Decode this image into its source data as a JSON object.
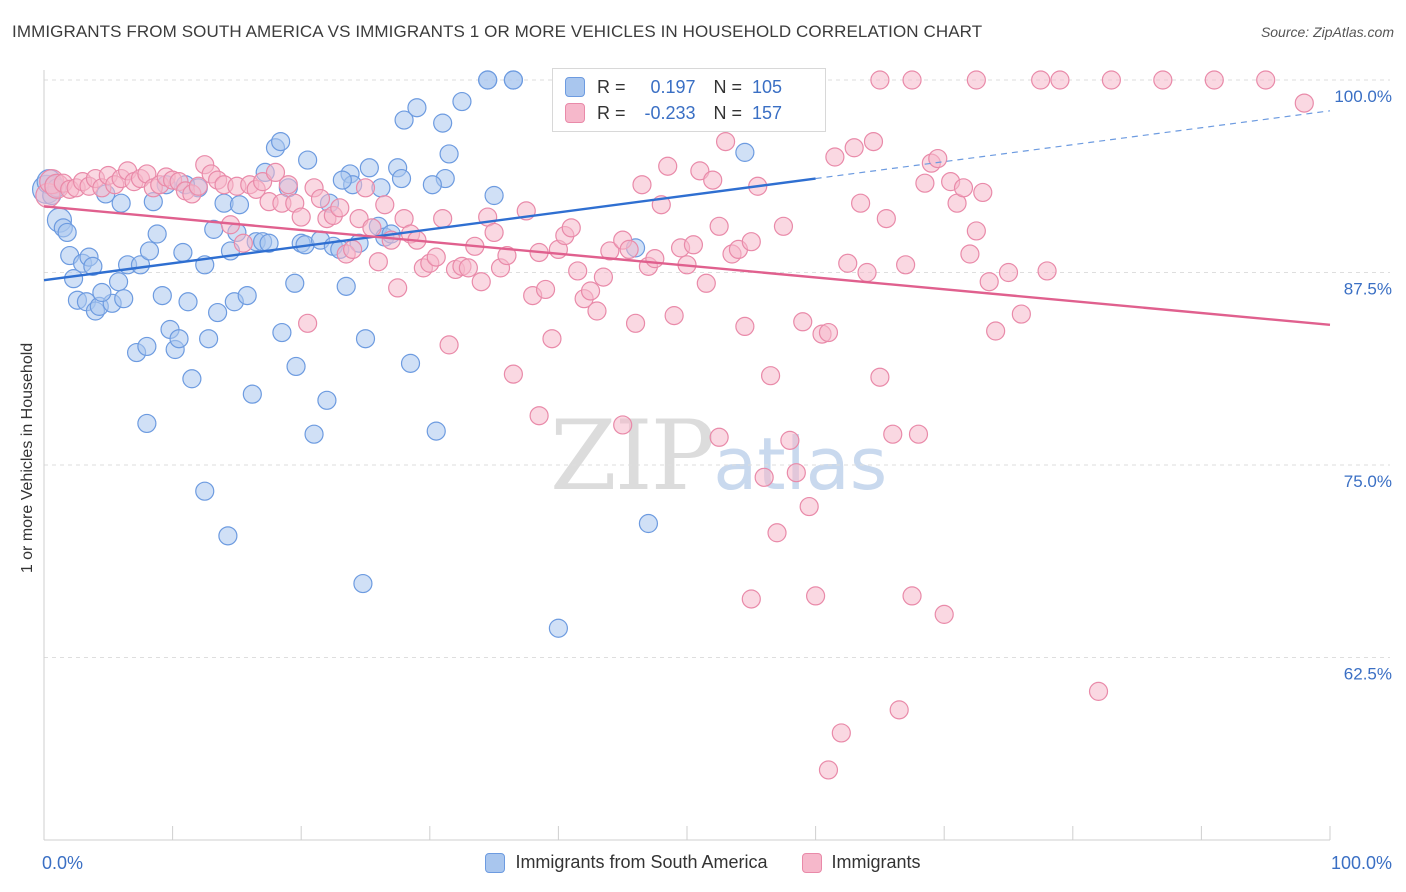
{
  "header": {
    "title": "IMMIGRANTS FROM SOUTH AMERICA VS IMMIGRANTS 1 OR MORE VEHICLES IN HOUSEHOLD CORRELATION CHART",
    "source": "Source: ZipAtlas.com"
  },
  "watermark": {
    "zip": "ZIP",
    "atlas": "atlas"
  },
  "legend_top": {
    "r_label": "R =",
    "n_label": "N =",
    "rows": [
      {
        "r": "0.197",
        "n": "105",
        "fill": "#a9c6ee",
        "stroke": "#6d9be0"
      },
      {
        "r": "-0.233",
        "n": "157",
        "fill": "#f6b8cb",
        "stroke": "#e98aa9"
      }
    ]
  },
  "chart_data": {
    "type": "scatter",
    "xlabel": "",
    "ylabel": "1 or more Vehicles in Household",
    "xlim": [
      0,
      100
    ],
    "ylim": [
      52,
      101.5
    ],
    "x_ticks": [
      "0.0%",
      "100.0%"
    ],
    "y_ticks": [
      {
        "value": 100.0,
        "label": "100.0%"
      },
      {
        "value": 87.5,
        "label": "87.5%"
      },
      {
        "value": 75.0,
        "label": "75.0%"
      },
      {
        "value": 62.5,
        "label": "62.5%"
      }
    ],
    "grid": "horizontal dashed",
    "series": [
      {
        "name": "Immigrants from South America",
        "color": "#6d9be0",
        "fill": "#a9c6ee",
        "trend": {
          "x0": 0,
          "y0": 87.0,
          "x1": 60,
          "y1": 93.6,
          "dash_to_x": 100,
          "dash_to_y": 98.0
        },
        "points": [
          [
            0.2,
            92.9
          ],
          [
            0.4,
            93.4
          ],
          [
            0.8,
            93.2
          ],
          [
            1.2,
            90.9
          ],
          [
            1.5,
            90.4
          ],
          [
            1.8,
            90.1
          ],
          [
            2.0,
            88.6
          ],
          [
            2.3,
            87.1
          ],
          [
            2.6,
            85.7
          ],
          [
            3.0,
            88.1
          ],
          [
            3.3,
            85.6
          ],
          [
            3.5,
            88.5
          ],
          [
            3.8,
            87.9
          ],
          [
            4.0,
            85.0
          ],
          [
            4.3,
            85.3
          ],
          [
            4.8,
            92.6
          ],
          [
            5.3,
            85.5
          ],
          [
            5.8,
            86.9
          ],
          [
            6.2,
            85.8
          ],
          [
            6.5,
            88.0
          ],
          [
            7.2,
            82.3
          ],
          [
            7.5,
            88.0
          ],
          [
            8.0,
            82.7
          ],
          [
            8.2,
            88.9
          ],
          [
            8.8,
            90.0
          ],
          [
            8.5,
            92.1
          ],
          [
            9.2,
            86.0
          ],
          [
            9.8,
            83.8
          ],
          [
            10.2,
            82.5
          ],
          [
            10.5,
            83.2
          ],
          [
            10.8,
            88.8
          ],
          [
            11.2,
            85.6
          ],
          [
            11.5,
            80.6
          ],
          [
            12.0,
            93.0
          ],
          [
            12.5,
            88.0
          ],
          [
            12.8,
            83.2
          ],
          [
            13.2,
            90.3
          ],
          [
            13.5,
            84.9
          ],
          [
            14.0,
            92.0
          ],
          [
            14.5,
            88.9
          ],
          [
            14.8,
            85.6
          ],
          [
            15.2,
            91.9
          ],
          [
            15.8,
            86.0
          ],
          [
            16.2,
            79.6
          ],
          [
            16.5,
            89.5
          ],
          [
            17.0,
            89.5
          ],
          [
            17.5,
            89.4
          ],
          [
            18.0,
            95.6
          ],
          [
            18.4,
            96.0
          ],
          [
            18.5,
            83.6
          ],
          [
            19.0,
            93.0
          ],
          [
            19.5,
            86.8
          ],
          [
            19.6,
            81.4
          ],
          [
            20.0,
            89.4
          ],
          [
            20.3,
            89.3
          ],
          [
            20.5,
            94.8
          ],
          [
            21.0,
            77.0
          ],
          [
            21.5,
            89.6
          ],
          [
            22.0,
            79.2
          ],
          [
            22.5,
            89.2
          ],
          [
            23.0,
            89.0
          ],
          [
            23.5,
            86.6
          ],
          [
            23.8,
            93.9
          ],
          [
            24.0,
            93.2
          ],
          [
            24.5,
            89.4
          ],
          [
            24.8,
            67.3
          ],
          [
            25.0,
            83.2
          ],
          [
            25.3,
            94.3
          ],
          [
            26.0,
            90.5
          ],
          [
            26.5,
            89.8
          ],
          [
            27.0,
            90.0
          ],
          [
            27.5,
            94.3
          ],
          [
            27.8,
            93.6
          ],
          [
            28.0,
            97.4
          ],
          [
            28.5,
            81.6
          ],
          [
            29.0,
            98.2
          ],
          [
            30.5,
            77.2
          ],
          [
            31.0,
            97.2
          ],
          [
            31.5,
            95.2
          ],
          [
            31.2,
            93.6
          ],
          [
            32.5,
            98.6
          ],
          [
            34.5,
            100.0
          ],
          [
            36.5,
            100.0
          ],
          [
            12.5,
            73.3
          ],
          [
            14.3,
            70.4
          ],
          [
            8.0,
            77.7
          ],
          [
            40.0,
            64.4
          ],
          [
            46.0,
            89.1
          ],
          [
            47.0,
            71.2
          ],
          [
            54.5,
            95.3
          ],
          [
            59.2,
            100.0
          ],
          [
            0.6,
            92.5
          ],
          [
            1.0,
            93.0
          ],
          [
            4.5,
            86.2
          ],
          [
            6.0,
            92.0
          ],
          [
            9.5,
            93.2
          ],
          [
            11.0,
            93.2
          ],
          [
            15.0,
            90.1
          ],
          [
            17.2,
            94.0
          ],
          [
            22.2,
            92.0
          ],
          [
            23.2,
            93.5
          ],
          [
            26.2,
            93.0
          ],
          [
            30.2,
            93.2
          ],
          [
            35.0,
            92.5
          ],
          [
            41.0,
            100.0
          ]
        ]
      },
      {
        "name": "Immigrants",
        "color": "#e98aa9",
        "fill": "#f6b8cb",
        "trend": {
          "x0": 0,
          "y0": 91.8,
          "x1": 100,
          "y1": 84.1
        },
        "points": [
          [
            0.3,
            92.5
          ],
          [
            0.6,
            93.4
          ],
          [
            1.0,
            93.1
          ],
          [
            1.5,
            93.3
          ],
          [
            2.0,
            92.9
          ],
          [
            2.5,
            93.0
          ],
          [
            3.0,
            93.4
          ],
          [
            3.5,
            93.1
          ],
          [
            4.0,
            93.6
          ],
          [
            4.5,
            93.0
          ],
          [
            5.0,
            93.8
          ],
          [
            5.5,
            93.2
          ],
          [
            6.0,
            93.6
          ],
          [
            6.5,
            94.1
          ],
          [
            7.0,
            93.4
          ],
          [
            7.5,
            93.6
          ],
          [
            8.0,
            93.9
          ],
          [
            8.5,
            93.0
          ],
          [
            9.0,
            93.2
          ],
          [
            9.5,
            93.7
          ],
          [
            10.0,
            93.5
          ],
          [
            10.5,
            93.4
          ],
          [
            11.0,
            92.8
          ],
          [
            11.5,
            92.6
          ],
          [
            12.0,
            93.1
          ],
          [
            12.5,
            94.5
          ],
          [
            13.0,
            93.9
          ],
          [
            13.5,
            93.5
          ],
          [
            14.0,
            93.2
          ],
          [
            14.5,
            90.6
          ],
          [
            15.0,
            93.1
          ],
          [
            15.5,
            89.4
          ],
          [
            16.0,
            93.2
          ],
          [
            16.5,
            92.9
          ],
          [
            17.0,
            93.4
          ],
          [
            17.5,
            92.1
          ],
          [
            18.0,
            94.0
          ],
          [
            18.5,
            92.0
          ],
          [
            19.0,
            93.2
          ],
          [
            19.5,
            92.0
          ],
          [
            20.0,
            91.1
          ],
          [
            20.5,
            84.2
          ],
          [
            21.0,
            93.0
          ],
          [
            21.5,
            92.3
          ],
          [
            22.0,
            91.0
          ],
          [
            22.5,
            91.2
          ],
          [
            23.0,
            91.7
          ],
          [
            23.5,
            88.7
          ],
          [
            24.0,
            89.0
          ],
          [
            24.5,
            91.0
          ],
          [
            25.0,
            93.0
          ],
          [
            25.5,
            90.4
          ],
          [
            26.0,
            88.2
          ],
          [
            26.5,
            91.9
          ],
          [
            27.0,
            89.6
          ],
          [
            27.5,
            86.5
          ],
          [
            28.0,
            91.0
          ],
          [
            28.5,
            90.0
          ],
          [
            29.0,
            89.6
          ],
          [
            29.5,
            87.8
          ],
          [
            30.0,
            88.1
          ],
          [
            30.5,
            88.5
          ],
          [
            31.0,
            91.0
          ],
          [
            31.5,
            82.8
          ],
          [
            32.0,
            87.7
          ],
          [
            32.5,
            87.9
          ],
          [
            33.0,
            87.8
          ],
          [
            33.5,
            89.2
          ],
          [
            34.0,
            86.9
          ],
          [
            34.5,
            91.1
          ],
          [
            35.0,
            90.1
          ],
          [
            35.5,
            87.8
          ],
          [
            36.0,
            88.6
          ],
          [
            36.5,
            80.9
          ],
          [
            37.5,
            91.5
          ],
          [
            38.0,
            86.0
          ],
          [
            38.5,
            88.8
          ],
          [
            39.0,
            86.4
          ],
          [
            39.5,
            83.2
          ],
          [
            40.0,
            89.0
          ],
          [
            40.5,
            89.9
          ],
          [
            41.0,
            90.4
          ],
          [
            41.5,
            87.6
          ],
          [
            42.0,
            85.8
          ],
          [
            42.5,
            86.3
          ],
          [
            43.0,
            85.0
          ],
          [
            43.5,
            87.2
          ],
          [
            44.0,
            88.9
          ],
          [
            45.0,
            89.6
          ],
          [
            45.5,
            89.0
          ],
          [
            46.0,
            84.2
          ],
          [
            46.5,
            93.2
          ],
          [
            47.0,
            87.9
          ],
          [
            47.5,
            88.4
          ],
          [
            48.0,
            91.9
          ],
          [
            48.5,
            94.4
          ],
          [
            49.0,
            84.7
          ],
          [
            49.5,
            89.1
          ],
          [
            50.0,
            88.0
          ],
          [
            50.5,
            89.3
          ],
          [
            51.0,
            94.1
          ],
          [
            51.5,
            86.8
          ],
          [
            52.0,
            93.5
          ],
          [
            52.5,
            90.5
          ],
          [
            53.0,
            96.0
          ],
          [
            53.5,
            88.7
          ],
          [
            54.0,
            89.0
          ],
          [
            54.5,
            84.0
          ],
          [
            55.0,
            89.5
          ],
          [
            55.5,
            93.1
          ],
          [
            56.0,
            74.2
          ],
          [
            56.5,
            80.8
          ],
          [
            57.0,
            70.6
          ],
          [
            57.5,
            90.5
          ],
          [
            58.0,
            76.6
          ],
          [
            58.5,
            74.5
          ],
          [
            59.0,
            84.3
          ],
          [
            59.5,
            72.3
          ],
          [
            60.0,
            66.5
          ],
          [
            60.5,
            83.5
          ],
          [
            61.0,
            55.2
          ],
          [
            61.5,
            95.0
          ],
          [
            62.0,
            57.6
          ],
          [
            62.5,
            88.1
          ],
          [
            63.0,
            95.6
          ],
          [
            63.5,
            92.0
          ],
          [
            64.0,
            87.5
          ],
          [
            64.5,
            96.0
          ],
          [
            65.0,
            80.7
          ],
          [
            65.5,
            91.0
          ],
          [
            66.0,
            77.0
          ],
          [
            66.5,
            59.1
          ],
          [
            67.0,
            88.0
          ],
          [
            67.5,
            66.5
          ],
          [
            68.0,
            77.0
          ],
          [
            68.5,
            93.3
          ],
          [
            69.0,
            94.6
          ],
          [
            69.5,
            94.9
          ],
          [
            70.0,
            65.3
          ],
          [
            70.5,
            93.4
          ],
          [
            71.0,
            92.0
          ],
          [
            71.5,
            93.0
          ],
          [
            72.0,
            88.7
          ],
          [
            72.5,
            90.2
          ],
          [
            73.0,
            92.7
          ],
          [
            73.5,
            86.9
          ],
          [
            74.0,
            83.7
          ],
          [
            75.0,
            87.5
          ],
          [
            76.0,
            84.8
          ],
          [
            78.0,
            87.6
          ],
          [
            82.0,
            60.3
          ],
          [
            98.0,
            98.5
          ],
          [
            55.0,
            66.3
          ],
          [
            45.0,
            77.6
          ],
          [
            38.5,
            78.2
          ],
          [
            52.5,
            76.8
          ],
          [
            61.0,
            83.6
          ]
        ]
      }
    ],
    "top_edge_points": {
      "blue": [
        34.5,
        36.5,
        42.0,
        44.0,
        45.5,
        48.5,
        59.0
      ],
      "pink": [
        65.0,
        67.5,
        72.5,
        77.5,
        79.0,
        83.0,
        87.0,
        91.0,
        95.0
      ]
    }
  },
  "legend_bottom": [
    {
      "label": "Immigrants from South America",
      "fill": "#a9c6ee",
      "stroke": "#6d9be0"
    },
    {
      "label": "Immigrants",
      "fill": "#f6b8cb",
      "stroke": "#e98aa9"
    }
  ]
}
